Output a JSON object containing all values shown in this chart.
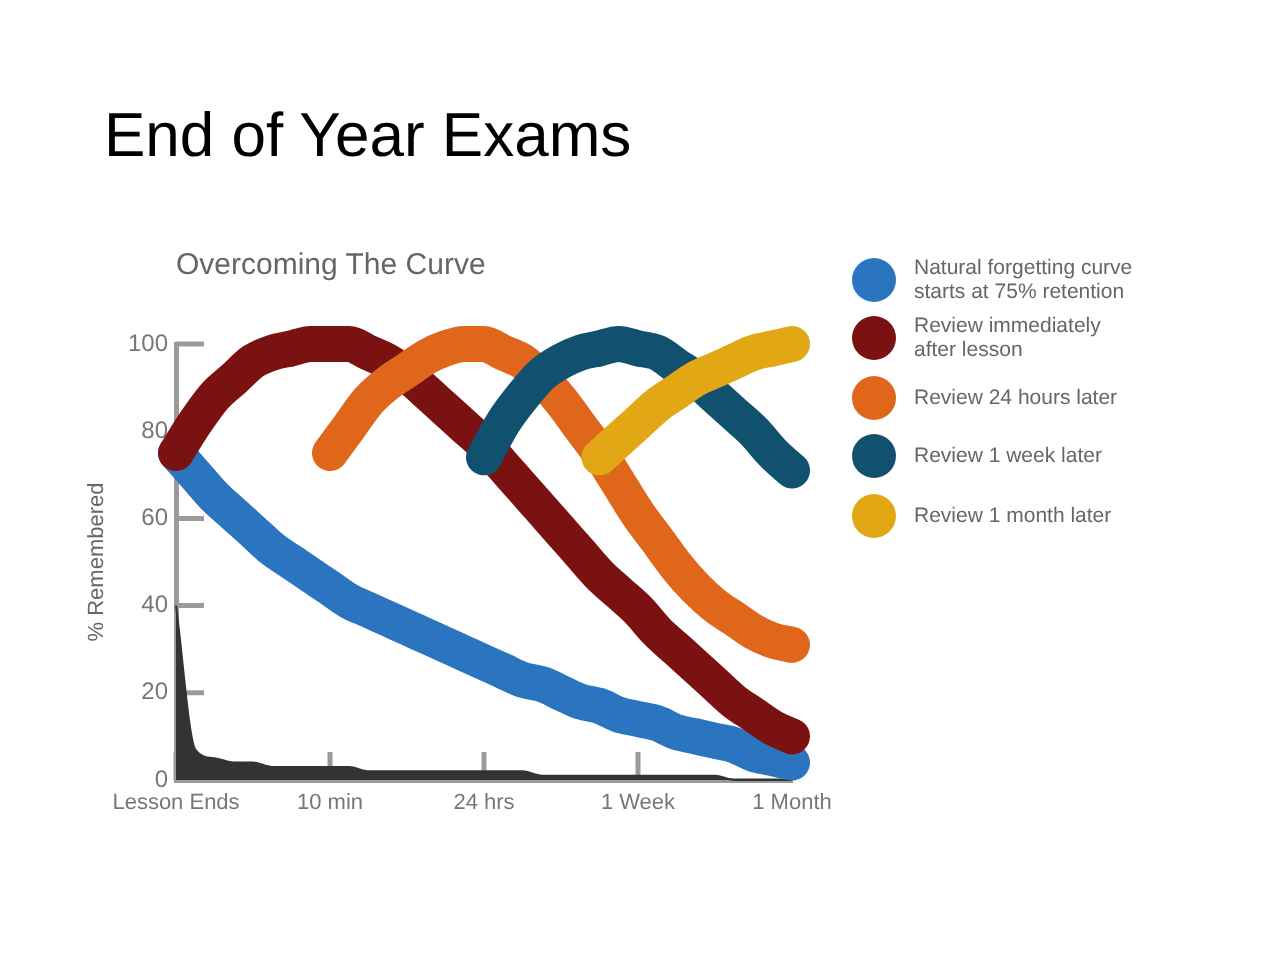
{
  "chart_data": {
    "type": "line",
    "title": "End of Year Exams",
    "subtitle": "Overcoming The Curve",
    "ylabel": "% Remembered",
    "categories": [
      "Lesson Ends",
      null,
      null,
      null,
      null,
      null,
      null,
      null,
      "10 min",
      null,
      null,
      null,
      null,
      null,
      null,
      null,
      "24 hrs",
      null,
      null,
      null,
      null,
      null,
      null,
      null,
      "1 Week",
      null,
      null,
      null,
      null,
      null,
      null,
      null,
      "1 Month"
    ],
    "ylim": [
      0,
      100
    ],
    "yticks": [
      0,
      20,
      40,
      60,
      80,
      100
    ],
    "grid": false,
    "legend": "right",
    "marker": "none",
    "series": [
      {
        "type": "area",
        "color": "#333333",
        "values": [
          40,
          7,
          5,
          4,
          4,
          3,
          3,
          3,
          3,
          3,
          2,
          2,
          2,
          2,
          2,
          2,
          2,
          2,
          2,
          1,
          1,
          1,
          1,
          1,
          1,
          1,
          1,
          1,
          1,
          0,
          0,
          0,
          0
        ]
      },
      {
        "name": "Natural forgetting curve starts at 75% retention",
        "color": "#2a74c0",
        "values": [
          75,
          70,
          65,
          61,
          57,
          53,
          50,
          47,
          44,
          41,
          39,
          37,
          35,
          33,
          31,
          29,
          27,
          25,
          23,
          22,
          20,
          18,
          17,
          15,
          14,
          13,
          11,
          10,
          9,
          8,
          6,
          5,
          4
        ]
      },
      {
        "name": "Review immediately after lesson",
        "color": "#7a1212",
        "values": [
          75,
          82,
          88,
          92,
          96,
          98,
          99,
          100,
          100,
          100,
          98,
          96,
          93,
          89,
          85,
          81,
          77,
          72,
          67,
          62,
          57,
          52,
          47,
          43,
          39,
          34,
          30,
          26,
          22,
          18,
          15,
          12,
          10
        ]
      },
      {
        "name": "Review 24 hours later",
        "color": "#e0661c",
        "values": [
          null,
          null,
          null,
          null,
          null,
          null,
          null,
          null,
          75,
          81,
          87,
          91,
          94,
          97,
          99,
          100,
          100,
          98,
          96,
          92,
          87,
          81,
          75,
          68,
          61,
          55,
          49,
          44,
          40,
          37,
          34,
          32,
          31
        ]
      },
      {
        "name": "Review 1 week later",
        "color": "#11506e",
        "values": [
          null,
          null,
          null,
          null,
          null,
          null,
          null,
          null,
          null,
          null,
          null,
          null,
          null,
          null,
          null,
          null,
          74,
          82,
          88,
          93,
          96,
          98,
          99,
          100,
          99,
          98,
          95,
          92,
          88,
          84,
          80,
          75,
          71
        ]
      },
      {
        "name": "Review 1 month later",
        "color": "#e2a714",
        "values": [
          null,
          null,
          null,
          null,
          null,
          null,
          null,
          null,
          null,
          null,
          null,
          null,
          null,
          null,
          null,
          null,
          null,
          null,
          null,
          null,
          null,
          null,
          74,
          78,
          82,
          86,
          89,
          92,
          94,
          96,
          98,
          99,
          100
        ]
      }
    ]
  }
}
